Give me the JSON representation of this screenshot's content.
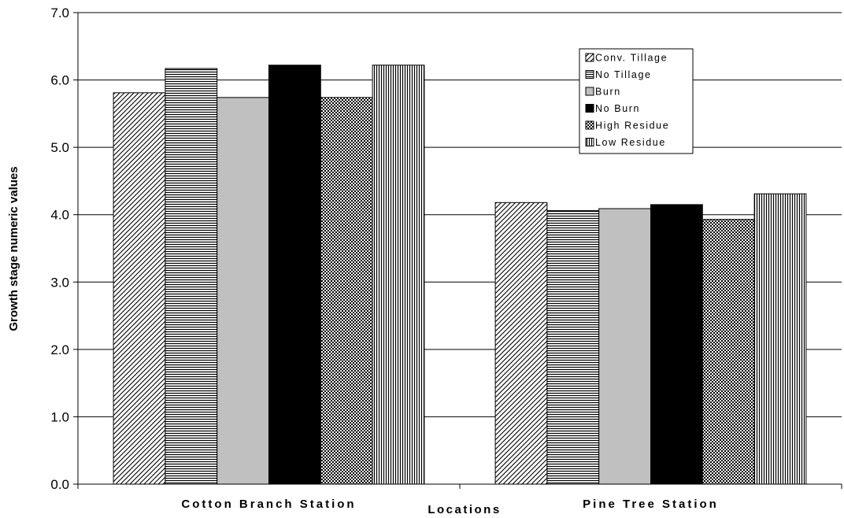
{
  "chart_data": {
    "type": "bar",
    "title": "",
    "xlabel": "Locations",
    "ylabel": "Growth stage numeric values",
    "categories": [
      "Cotton Branch Station",
      "Pine Tree Station"
    ],
    "ylim": [
      0,
      7
    ],
    "yticks": [
      "0.0",
      "1.0",
      "2.0",
      "3.0",
      "4.0",
      "5.0",
      "6.0",
      "7.0"
    ],
    "grid": true,
    "legend_position": "top-right",
    "series": [
      {
        "name": "Conv. Tillage",
        "pattern": "diagonal",
        "values": [
          5.81,
          4.18
        ]
      },
      {
        "name": "No Tillage",
        "pattern": "horizontal",
        "values": [
          6.17,
          4.06
        ]
      },
      {
        "name": "Burn",
        "pattern": "solid-gray",
        "values": [
          5.74,
          4.09
        ]
      },
      {
        "name": "No Burn",
        "pattern": "solid-black",
        "values": [
          6.22,
          4.15
        ]
      },
      {
        "name": "High Residue",
        "pattern": "checker",
        "values": [
          5.74,
          3.93
        ]
      },
      {
        "name": "Low Residue",
        "pattern": "vertical",
        "values": [
          6.22,
          4.31
        ]
      }
    ],
    "colors": {
      "gray": "#c0c0c0",
      "black": "#000000",
      "gridline": "#000000"
    }
  }
}
